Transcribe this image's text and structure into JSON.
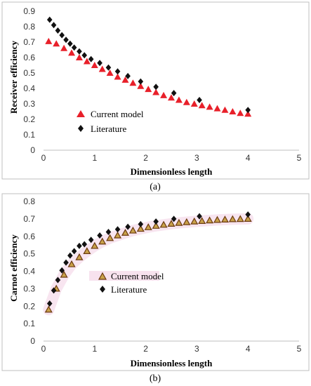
{
  "colors": {
    "current_a": "#e8202a",
    "literature": "#111111",
    "current_b_fill": "#c9a24a",
    "current_b_stroke": "#6b3a10",
    "glow_b": "#f2cfe3",
    "frame": "#bfbfbf"
  },
  "chart_data": [
    {
      "type": "scatter",
      "caption": "(a)",
      "xlabel": "Dimensionless length",
      "ylabel": "Receiver efficiency",
      "xlim": [
        0,
        5
      ],
      "ylim": [
        0,
        0.9
      ],
      "xticks": [
        "0",
        "1",
        "2",
        "3",
        "4",
        "5"
      ],
      "yticks": [
        "0",
        "0.1",
        "0.2",
        "0.3",
        "0.4",
        "0.5",
        "0.6",
        "0.7",
        "0.8",
        "0.9"
      ],
      "grid": false,
      "legend_position": "lower-left",
      "series": [
        {
          "name": "Current model",
          "marker": "triangle",
          "x": [
            0.1,
            0.25,
            0.4,
            0.55,
            0.7,
            0.85,
            1.0,
            1.15,
            1.3,
            1.45,
            1.6,
            1.75,
            1.9,
            2.05,
            2.2,
            2.35,
            2.5,
            2.65,
            2.8,
            2.95,
            3.1,
            3.25,
            3.4,
            3.55,
            3.7,
            3.85,
            4.0
          ],
          "y": [
            0.705,
            0.69,
            0.66,
            0.63,
            0.6,
            0.575,
            0.55,
            0.525,
            0.5,
            0.475,
            0.455,
            0.435,
            0.415,
            0.395,
            0.375,
            0.355,
            0.34,
            0.325,
            0.31,
            0.3,
            0.29,
            0.28,
            0.27,
            0.26,
            0.25,
            0.24,
            0.235
          ]
        },
        {
          "name": "Literature",
          "marker": "diamond",
          "x": [
            0.12,
            0.2,
            0.28,
            0.36,
            0.44,
            0.52,
            0.6,
            0.7,
            0.8,
            0.93,
            1.1,
            1.27,
            1.45,
            1.65,
            1.9,
            2.2,
            2.55,
            3.05,
            4.0
          ],
          "y": [
            0.845,
            0.81,
            0.775,
            0.745,
            0.715,
            0.69,
            0.665,
            0.64,
            0.615,
            0.59,
            0.565,
            0.535,
            0.51,
            0.48,
            0.445,
            0.41,
            0.37,
            0.325,
            0.26
          ]
        }
      ]
    },
    {
      "type": "scatter",
      "caption": "(b)",
      "xlabel": "Dimensionless length",
      "ylabel": "Carnot efficiency",
      "xlim": [
        0,
        5
      ],
      "ylim": [
        0,
        0.8
      ],
      "xticks": [
        "0",
        "1",
        "2",
        "3",
        "4",
        "5"
      ],
      "yticks": [
        "0",
        "0.1",
        "0.2",
        "0.3",
        "0.4",
        "0.5",
        "0.6",
        "0.7",
        "0.8"
      ],
      "grid": false,
      "legend_position": "lower-center",
      "series": [
        {
          "name": "Current model",
          "marker": "triangle-open",
          "x": [
            0.1,
            0.25,
            0.4,
            0.55,
            0.7,
            0.85,
            1.0,
            1.15,
            1.3,
            1.45,
            1.6,
            1.75,
            1.9,
            2.05,
            2.2,
            2.35,
            2.5,
            2.65,
            2.8,
            2.95,
            3.1,
            3.25,
            3.4,
            3.55,
            3.7,
            3.85,
            4.0
          ],
          "y": [
            0.18,
            0.3,
            0.38,
            0.44,
            0.48,
            0.515,
            0.545,
            0.57,
            0.59,
            0.605,
            0.62,
            0.633,
            0.643,
            0.652,
            0.66,
            0.666,
            0.672,
            0.677,
            0.681,
            0.685,
            0.688,
            0.691,
            0.694,
            0.696,
            0.698,
            0.699,
            0.7
          ]
        },
        {
          "name": "Literature",
          "marker": "diamond",
          "x": [
            0.12,
            0.2,
            0.28,
            0.36,
            0.44,
            0.52,
            0.6,
            0.7,
            0.8,
            0.93,
            1.1,
            1.27,
            1.45,
            1.65,
            1.9,
            2.2,
            2.55,
            3.05,
            4.0
          ],
          "y": [
            0.215,
            0.29,
            0.35,
            0.405,
            0.45,
            0.49,
            0.515,
            0.545,
            0.555,
            0.58,
            0.605,
            0.625,
            0.64,
            0.655,
            0.67,
            0.685,
            0.7,
            0.715,
            0.725
          ]
        }
      ]
    }
  ]
}
